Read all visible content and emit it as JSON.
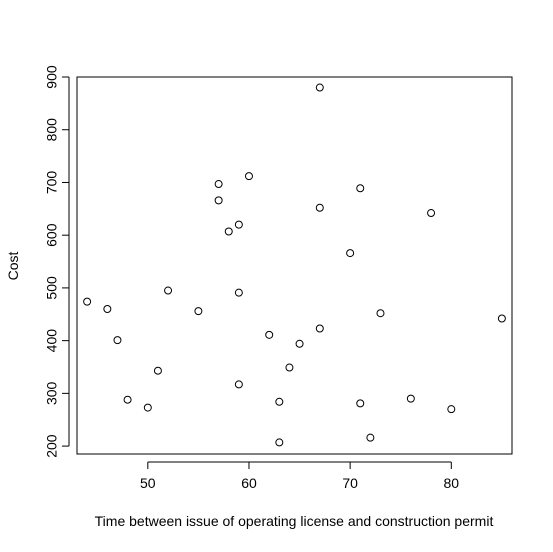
{
  "chart_data": {
    "type": "scatter",
    "title": "",
    "xlabel": "Time between issue of operating license and construction permit",
    "ylabel": "Cost",
    "xlim": [
      43,
      86
    ],
    "ylim": [
      185,
      900
    ],
    "xticks": [
      50,
      60,
      70,
      80
    ],
    "yticks": [
      200,
      300,
      400,
      500,
      600,
      700,
      800,
      900
    ],
    "xtick_labels": [
      "50",
      "60",
      "70",
      "80"
    ],
    "ytick_labels": [
      "200",
      "300",
      "400",
      "500",
      "600",
      "700",
      "800",
      "900"
    ],
    "grid": false,
    "legend": "none",
    "marker": "open-circle",
    "points": [
      {
        "x": 44,
        "y": 474
      },
      {
        "x": 46,
        "y": 460
      },
      {
        "x": 47,
        "y": 401
      },
      {
        "x": 48,
        "y": 288
      },
      {
        "x": 50,
        "y": 273
      },
      {
        "x": 51,
        "y": 343
      },
      {
        "x": 52,
        "y": 495
      },
      {
        "x": 55,
        "y": 456
      },
      {
        "x": 57,
        "y": 697
      },
      {
        "x": 57,
        "y": 666
      },
      {
        "x": 58,
        "y": 607
      },
      {
        "x": 59,
        "y": 620
      },
      {
        "x": 59,
        "y": 491
      },
      {
        "x": 59,
        "y": 317
      },
      {
        "x": 60,
        "y": 712
      },
      {
        "x": 62,
        "y": 411
      },
      {
        "x": 63,
        "y": 284
      },
      {
        "x": 63,
        "y": 207
      },
      {
        "x": 64,
        "y": 349
      },
      {
        "x": 65,
        "y": 394
      },
      {
        "x": 67,
        "y": 880
      },
      {
        "x": 67,
        "y": 652
      },
      {
        "x": 67,
        "y": 423
      },
      {
        "x": 70,
        "y": 566
      },
      {
        "x": 71,
        "y": 689
      },
      {
        "x": 71,
        "y": 281
      },
      {
        "x": 72,
        "y": 216
      },
      {
        "x": 73,
        "y": 452
      },
      {
        "x": 76,
        "y": 290
      },
      {
        "x": 78,
        "y": 642
      },
      {
        "x": 80,
        "y": 270
      },
      {
        "x": 85,
        "y": 442
      }
    ]
  }
}
